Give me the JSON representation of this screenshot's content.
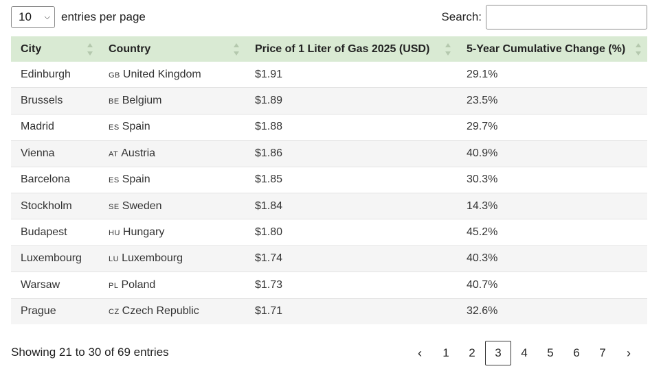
{
  "length_menu": {
    "selected": "10",
    "label": "entries per page"
  },
  "search": {
    "label": "Search:",
    "value": ""
  },
  "table": {
    "columns": [
      "City",
      "Country",
      "Price of 1 Liter of Gas 2025 (USD)",
      "5-Year Cumulative Change (%)"
    ],
    "rows": [
      {
        "city": "Edinburgh",
        "code": "GB",
        "country": "United Kingdom",
        "price": "$1.91",
        "change": "29.1%"
      },
      {
        "city": "Brussels",
        "code": "BE",
        "country": "Belgium",
        "price": "$1.89",
        "change": "23.5%"
      },
      {
        "city": "Madrid",
        "code": "ES",
        "country": "Spain",
        "price": "$1.88",
        "change": "29.7%"
      },
      {
        "city": "Vienna",
        "code": "AT",
        "country": "Austria",
        "price": "$1.86",
        "change": "40.9%"
      },
      {
        "city": "Barcelona",
        "code": "ES",
        "country": "Spain",
        "price": "$1.85",
        "change": "30.3%"
      },
      {
        "city": "Stockholm",
        "code": "SE",
        "country": "Sweden",
        "price": "$1.84",
        "change": "14.3%"
      },
      {
        "city": "Budapest",
        "code": "HU",
        "country": "Hungary",
        "price": "$1.80",
        "change": "45.2%"
      },
      {
        "city": "Luxembourg",
        "code": "LU",
        "country": "Luxembourg",
        "price": "$1.74",
        "change": "40.3%"
      },
      {
        "city": "Warsaw",
        "code": "PL",
        "country": "Poland",
        "price": "$1.73",
        "change": "40.7%"
      },
      {
        "city": "Prague",
        "code": "CZ",
        "country": "Czech Republic",
        "price": "$1.71",
        "change": "32.6%"
      }
    ]
  },
  "info": "Showing 21 to 30 of 69 entries",
  "pagination": {
    "prev": "‹",
    "next": "›",
    "pages": [
      "1",
      "2",
      "3",
      "4",
      "5",
      "6",
      "7"
    ],
    "current": "3"
  },
  "colors": {
    "header_bg": "#d9ead3",
    "stripe": "#f5f5f5"
  },
  "icons": {
    "sort": "sort-arrows-icon",
    "dropdown": "chevron-down-icon"
  }
}
